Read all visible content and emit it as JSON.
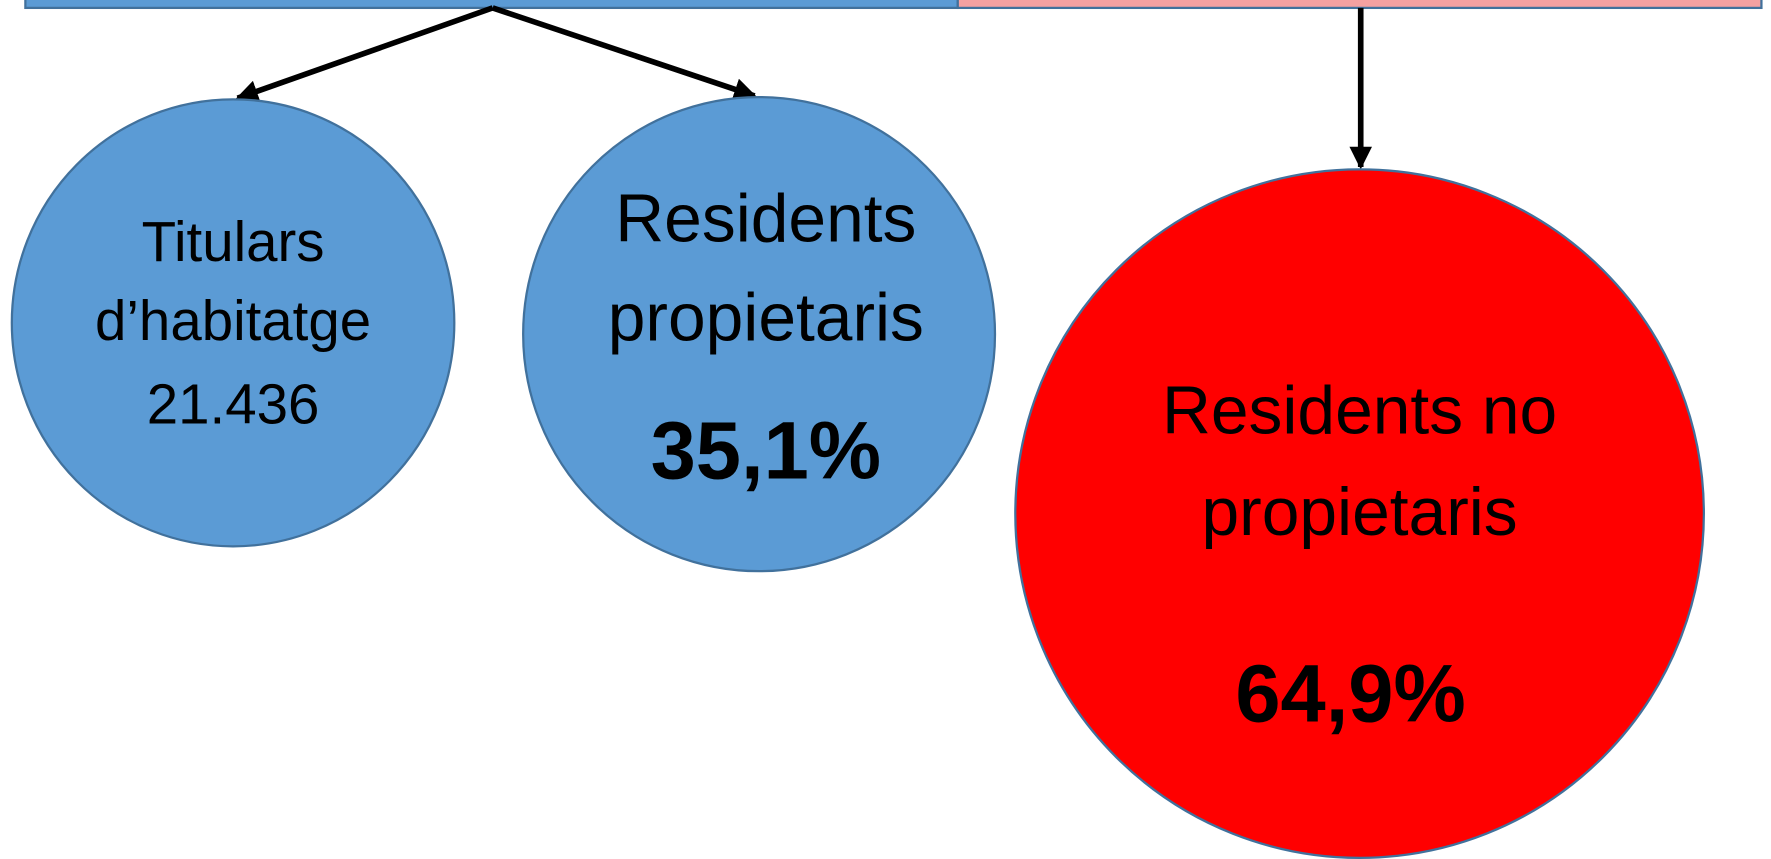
{
  "nodes": [
    {
      "lines": [
        "Titulars",
        "d’habitatge",
        "21.436"
      ]
    },
    {
      "lines": [
        "Residents",
        "propietaris"
      ],
      "value": "35,1%"
    },
    {
      "lines": [
        "Residents no",
        "propietaris"
      ],
      "value": "64,9%"
    }
  ]
}
